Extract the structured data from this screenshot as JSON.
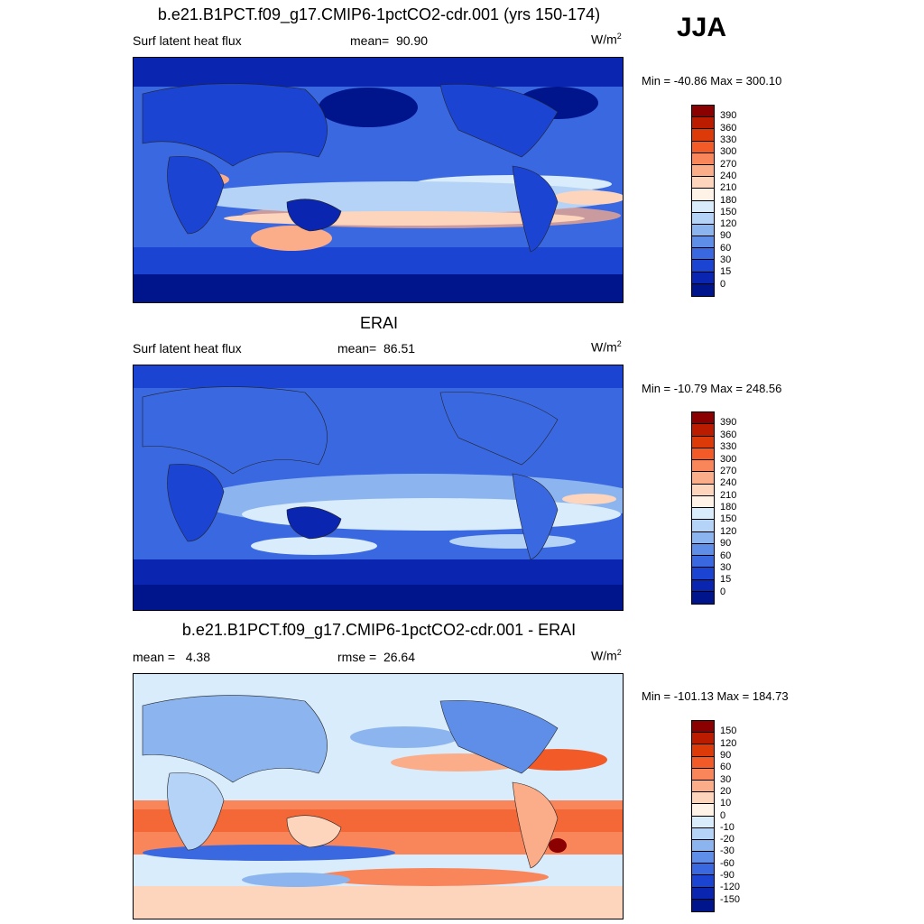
{
  "season": "JJA",
  "panels": [
    {
      "title": "b.e21.B1PCT.f09_g17.CMIP6-1pctCO2-cdr.001 (yrs 150-174)",
      "left": "Surf latent heat flux",
      "center_label": "mean=",
      "center_value": "90.90",
      "units": "W/m",
      "units_sup": "2",
      "minmax": "Min = -40.86 Max = 300.10",
      "type": "field"
    },
    {
      "title": "ERAI",
      "left": "Surf latent heat flux",
      "center_label": "mean=",
      "center_value": "86.51",
      "units": "W/m",
      "units_sup": "2",
      "minmax": "Min = -10.79 Max = 248.56",
      "type": "field"
    },
    {
      "title": "b.e21.B1PCT.f09_g17.CMIP6-1pctCO2-cdr.001 - ERAI",
      "left": "mean =   4.38",
      "center_label": "rmse =",
      "center_value": "26.64",
      "units": "W/m",
      "units_sup": "2",
      "minmax": "Min = -101.13 Max = 184.73",
      "type": "diff"
    }
  ],
  "colorbar_field": {
    "labels": [
      "390",
      "360",
      "330",
      "300",
      "270",
      "240",
      "210",
      "180",
      "150",
      "120",
      "90",
      "60",
      "30",
      "15",
      "0"
    ],
    "colors": [
      "#8b0000",
      "#bb1c00",
      "#dd3a0a",
      "#f25a28",
      "#f9855a",
      "#fbac88",
      "#fdd4bc",
      "#fff3e8",
      "#d9ecfb",
      "#b5d3f6",
      "#8cb5ef",
      "#5f8ee8",
      "#3a68e0",
      "#1c44d2",
      "#0a26b0",
      "#00148c"
    ]
  },
  "colorbar_diff": {
    "labels": [
      "150",
      "120",
      "90",
      "60",
      "30",
      "20",
      "10",
      "0",
      "-10",
      "-20",
      "-30",
      "-60",
      "-90",
      "-120",
      "-150"
    ],
    "colors": [
      "#8b0000",
      "#bb1c00",
      "#dd3a0a",
      "#f25a28",
      "#f9855a",
      "#fbac88",
      "#fdd4bc",
      "#fff3e8",
      "#d9ecfb",
      "#b5d3f6",
      "#8cb5ef",
      "#5f8ee8",
      "#3a68e0",
      "#1c44d2",
      "#0a26b0",
      "#00148c"
    ]
  }
}
